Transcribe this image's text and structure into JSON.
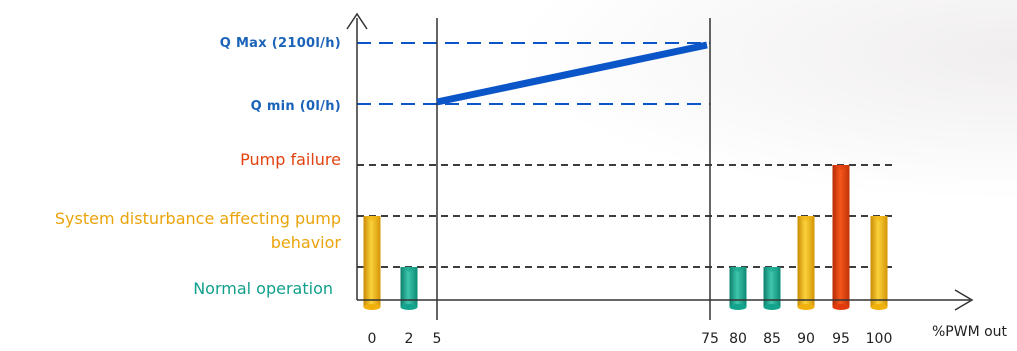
{
  "chart_data": {
    "type": "bar",
    "x_axis_label": "%PWM out",
    "x_ticks": [
      "0",
      "2",
      "5",
      "75",
      "80",
      "85",
      "90",
      "95",
      "100"
    ],
    "levels": {
      "q_max": "Q Max (2100l/h)",
      "q_min": "Q min (0l/h)",
      "pump_failure": "Pump failure",
      "disturbance": "System disturbance affecting pump behavior",
      "normal": "Normal operation"
    },
    "bars": [
      {
        "x": 0,
        "state": "disturbance"
      },
      {
        "x": 2,
        "state": "normal"
      },
      {
        "x": 80,
        "state": "normal"
      },
      {
        "x": 85,
        "state": "normal"
      },
      {
        "x": 90,
        "state": "disturbance"
      },
      {
        "x": 95,
        "state": "pump_failure"
      },
      {
        "x": 100,
        "state": "disturbance"
      }
    ],
    "flow_line": {
      "from": {
        "x": 5,
        "flow_l_per_h": 0
      },
      "to": {
        "x": 75,
        "flow_l_per_h": 2100
      }
    },
    "colors": {
      "flow": "#0a55c8",
      "normal": "#14a38c",
      "disturbance": "#f1b10d",
      "pump_failure": "#e13a0c",
      "axis": "#333333"
    }
  }
}
